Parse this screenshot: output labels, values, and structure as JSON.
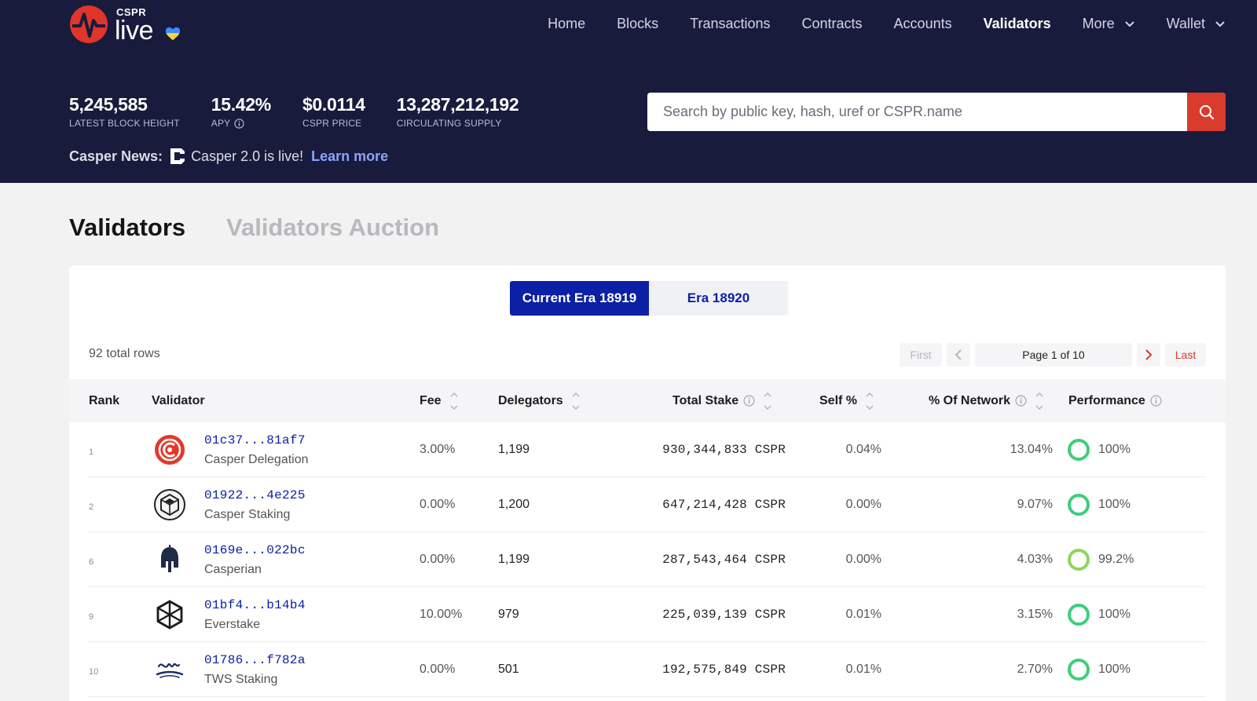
{
  "brand": {
    "small": "CSPR",
    "big": "live"
  },
  "nav": {
    "items": [
      {
        "label": "Home"
      },
      {
        "label": "Blocks"
      },
      {
        "label": "Transactions"
      },
      {
        "label": "Contracts"
      },
      {
        "label": "Accounts"
      },
      {
        "label": "Validators"
      },
      {
        "label": "More"
      },
      {
        "label": "Wallet"
      }
    ]
  },
  "stats": [
    {
      "value": "5,245,585",
      "label": "LATEST BLOCK HEIGHT"
    },
    {
      "value": "15.42%",
      "label": "APY"
    },
    {
      "value": "$0.0114",
      "label": "CSPR PRICE"
    },
    {
      "value": "13,287,212,192",
      "label": "CIRCULATING SUPPLY"
    }
  ],
  "news": {
    "label": "Casper News:",
    "text": "Casper 2.0 is live!",
    "link": "Learn more"
  },
  "search": {
    "placeholder": "Search by public key, hash, uref or CSPR.name"
  },
  "page_tabs": {
    "validators": "Validators",
    "auction": "Validators Auction"
  },
  "era": {
    "current": "Current Era 18919",
    "next": "Era 18920"
  },
  "table": {
    "total_rows": "92 total rows",
    "pager": {
      "first": "First",
      "page": "Page 1 of 10",
      "last": "Last"
    },
    "headers": {
      "rank": "Rank",
      "validator": "Validator",
      "fee": "Fee",
      "delegators": "Delegators",
      "total_stake": "Total Stake",
      "self": "Self %",
      "network": "% Of Network",
      "performance": "Performance"
    },
    "rows": [
      {
        "rank": "1",
        "hash": "01c37...81af7",
        "name": "Casper Delegation",
        "fee": "3.00%",
        "delegators": "1,199",
        "stake": "930,344,833 CSPR",
        "self": "0.04%",
        "network": "13.04%",
        "performance": "100%",
        "avatar": "casper-delegation-logo"
      },
      {
        "rank": "2",
        "hash": "01922...4e225",
        "name": "Casper Staking",
        "fee": "0.00%",
        "delegators": "1,200",
        "stake": "647,214,428 CSPR",
        "self": "0.00%",
        "network": "9.07%",
        "performance": "100%",
        "avatar": "casper-staking-logo"
      },
      {
        "rank": "6",
        "hash": "0169e...022bc",
        "name": "Casperian",
        "fee": "0.00%",
        "delegators": "1,199",
        "stake": "287,543,464 CSPR",
        "self": "0.00%",
        "network": "4.03%",
        "performance": "99.2%",
        "avatar": "spartan-helmet-logo"
      },
      {
        "rank": "9",
        "hash": "01bf4...b14b4",
        "name": "Everstake",
        "fee": "10.00%",
        "delegators": "979",
        "stake": "225,039,139 CSPR",
        "self": "0.01%",
        "network": "3.15%",
        "performance": "100%",
        "avatar": "hexagon-cube-logo"
      },
      {
        "rank": "10",
        "hash": "01786...f782a",
        "name": "TWS Staking",
        "fee": "0.00%",
        "delegators": "501",
        "stake": "192,575,849 CSPR",
        "self": "0.01%",
        "network": "2.70%",
        "performance": "100%",
        "avatar": "tws-logo"
      }
    ]
  },
  "colors": {
    "header_bg": "#181b3c",
    "accent_red": "#da3b2f",
    "accent_blue": "#0b20a5",
    "link": "#8ea3ff",
    "ring_full": "#3ccf7a",
    "ring_partial": "#8fd45e"
  }
}
